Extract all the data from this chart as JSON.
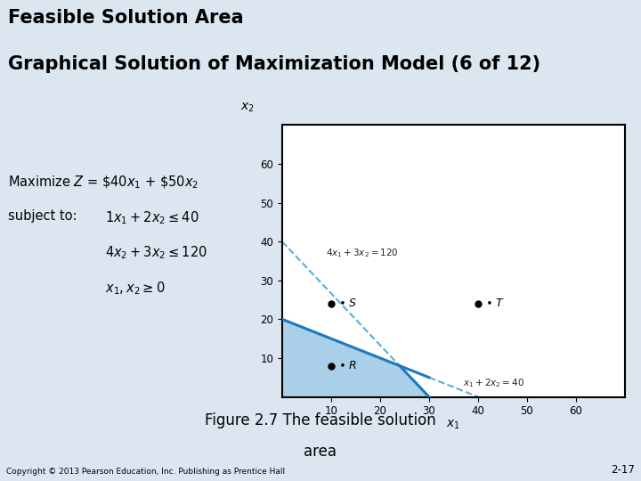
{
  "title_line1": "Feasible Solution Area",
  "title_line2": "Graphical Solution of Maximization Model (6 of 12)",
  "title_bg_color": "#dce6f1",
  "title_stripe_color": "#17a2c4",
  "body_bg_color": "#dce6f1",
  "graph_bg_color": "#ffffff",
  "xlim": [
    0,
    70
  ],
  "ylim": [
    0,
    70
  ],
  "xticks": [
    10,
    20,
    30,
    40,
    50,
    60
  ],
  "yticks": [
    10,
    20,
    30,
    40,
    50,
    60
  ],
  "feasible_fill_color": "#aacfe8",
  "line_color": "#1a7abf",
  "dashed_line_color": "#5aafd4",
  "point_S": [
    10,
    24
  ],
  "point_T": [
    40,
    24
  ],
  "point_R": [
    10,
    8
  ],
  "figure_caption": "Figure 2.7 The feasible solution",
  "figure_caption2": "area",
  "copyright_text": "Copyright © 2013 Pearson Education, Inc. Publishing as Prentice Hall",
  "slide_number": "2-17"
}
